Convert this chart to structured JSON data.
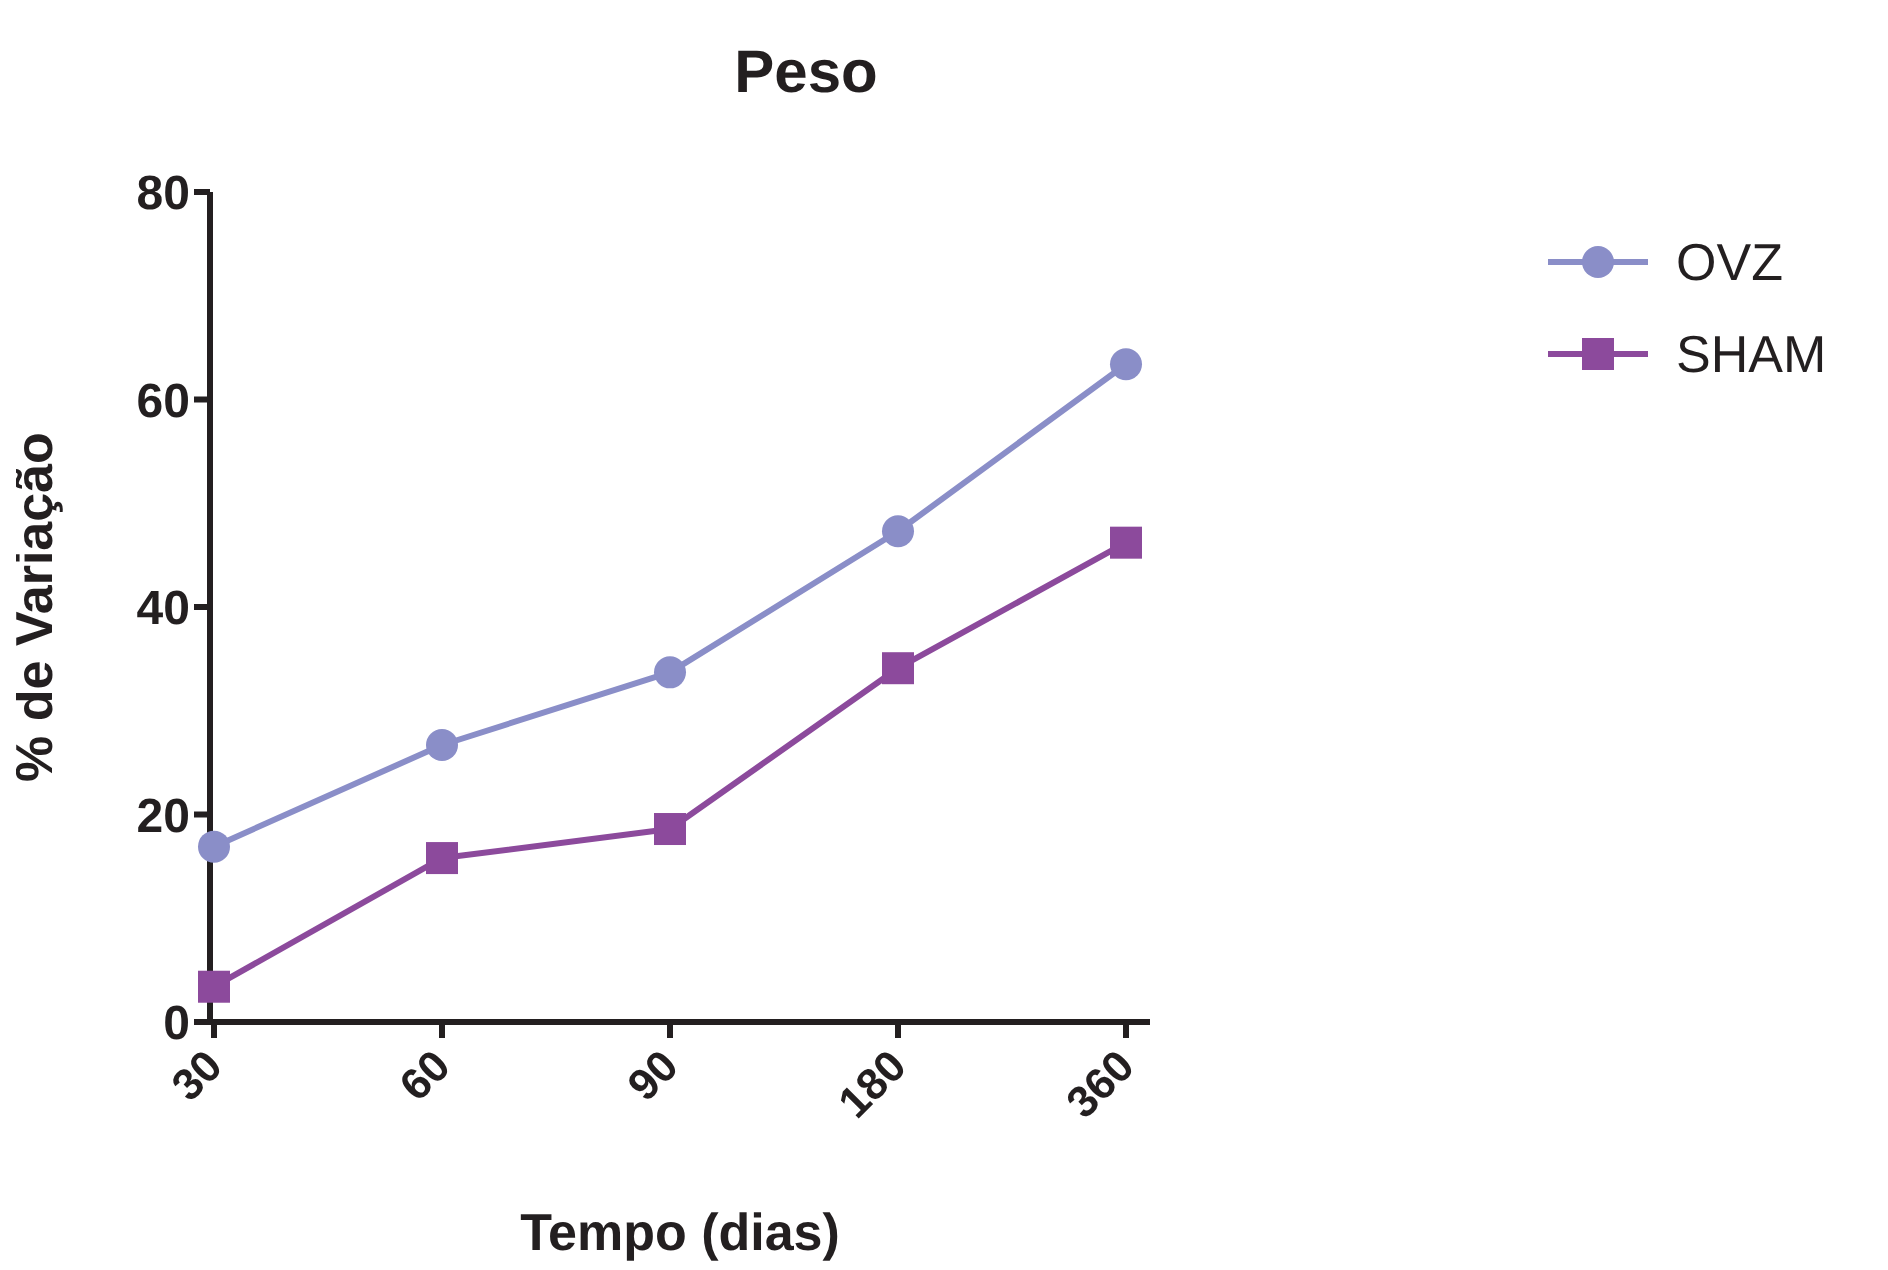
{
  "chart_data": {
    "type": "line",
    "title": "Peso",
    "xlabel": "Tempo (dias)",
    "ylabel": "% de Variação",
    "categories": [
      "30",
      "60",
      "90",
      "180",
      "360"
    ],
    "series": [
      {
        "name": "OVZ",
        "color": "#8a8ec8",
        "marker": "circle",
        "values": [
          16.9,
          26.7,
          33.7,
          47.3,
          63.4
        ]
      },
      {
        "name": "SHAM",
        "color": "#8c4a9c",
        "marker": "square",
        "values": [
          3.4,
          15.8,
          18.6,
          34.1,
          46.2
        ]
      }
    ],
    "ylim": [
      0,
      80
    ],
    "yticks": [
      0,
      20,
      40,
      60,
      80
    ],
    "grid": false,
    "legend": "top right",
    "line_style": "solid"
  }
}
